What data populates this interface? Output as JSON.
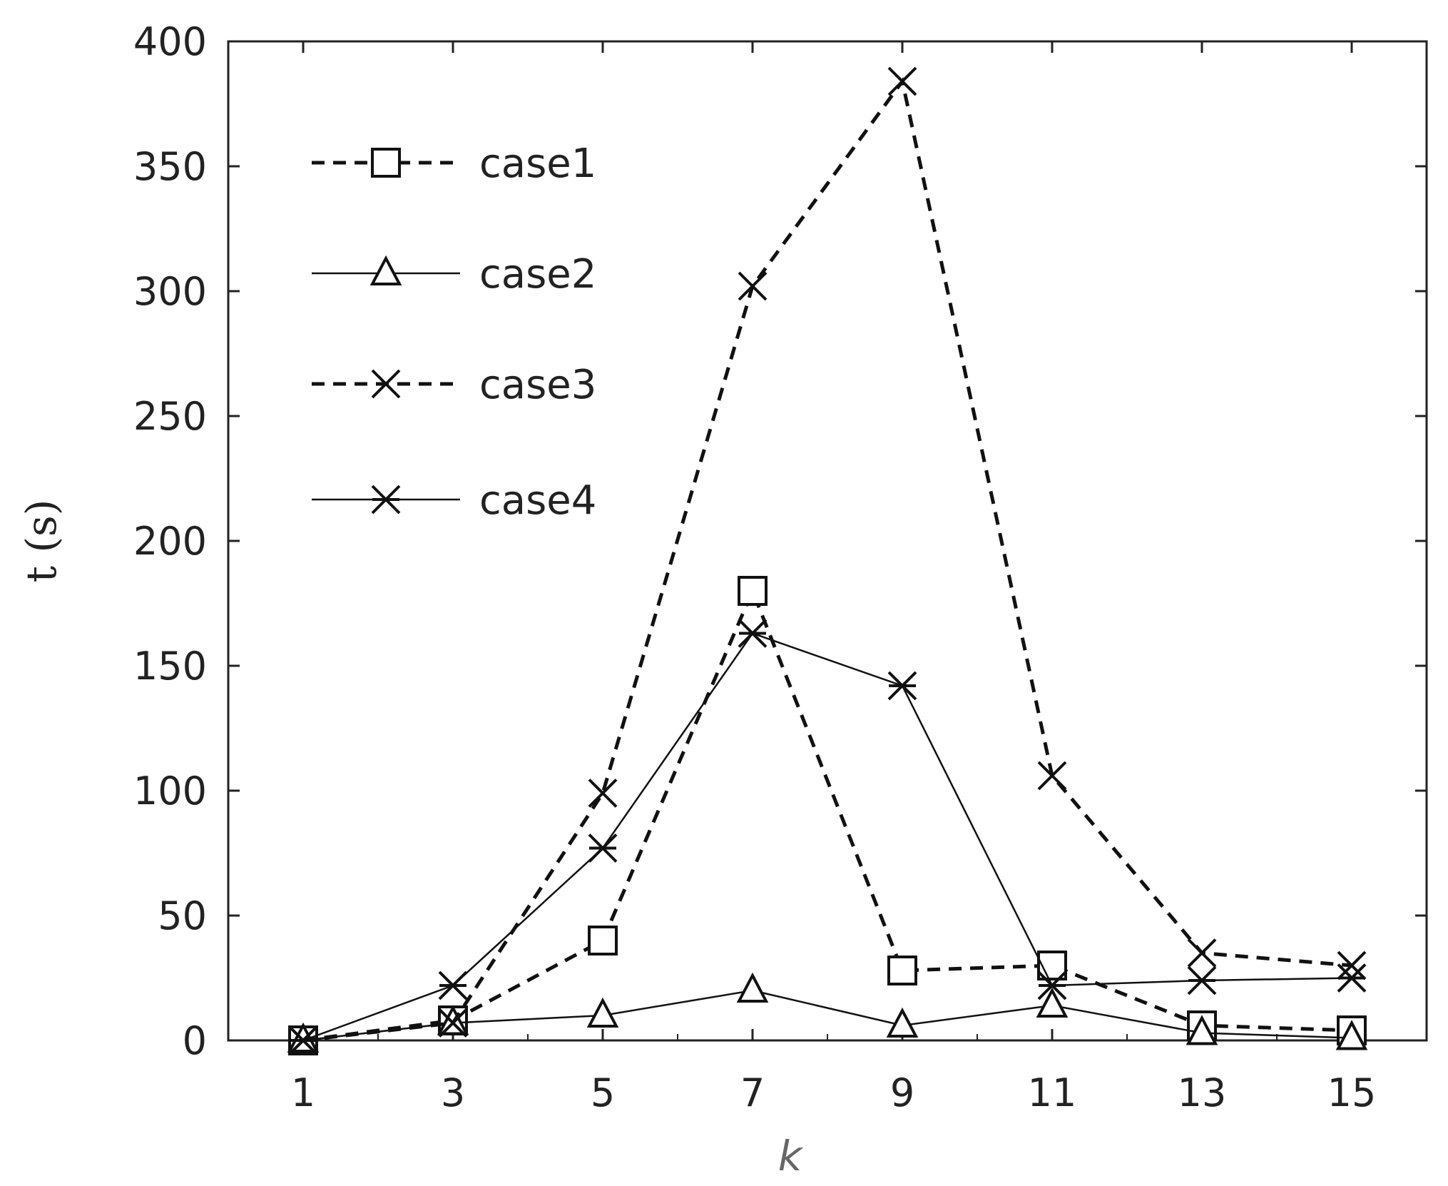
{
  "chart_data": {
    "type": "line",
    "title": "",
    "xlabel": "k",
    "ylabel": "t (s)",
    "x": [
      1,
      3,
      5,
      7,
      9,
      11,
      13,
      15
    ],
    "xticks": [
      "1",
      "3",
      "5",
      "7",
      "9",
      "11",
      "13",
      "15"
    ],
    "xlim": [
      0,
      16
    ],
    "ylim": [
      0,
      400
    ],
    "yticks": [
      "0",
      "50",
      "100",
      "150",
      "200",
      "250",
      "300",
      "350",
      "400"
    ],
    "grid": false,
    "legend_position": "top-left",
    "series": [
      {
        "name": "case1",
        "marker": "square",
        "line": "dashed",
        "values": [
          0,
          8,
          40,
          180,
          28,
          30,
          6,
          4
        ]
      },
      {
        "name": "case2",
        "marker": "triangle",
        "line": "solid",
        "values": [
          0,
          7,
          10,
          20,
          6,
          14,
          3,
          1
        ]
      },
      {
        "name": "case3",
        "marker": "x",
        "line": "dashed",
        "values": [
          0,
          7,
          99,
          302,
          384,
          106,
          35,
          30
        ]
      },
      {
        "name": "case4",
        "marker": "asterisk",
        "line": "solid",
        "values": [
          0,
          22,
          77,
          163,
          142,
          22,
          24,
          25
        ]
      }
    ],
    "colors": {
      "line": "#111111",
      "axis": "#222222",
      "text": "#222222",
      "xlabel": "#666666"
    }
  }
}
